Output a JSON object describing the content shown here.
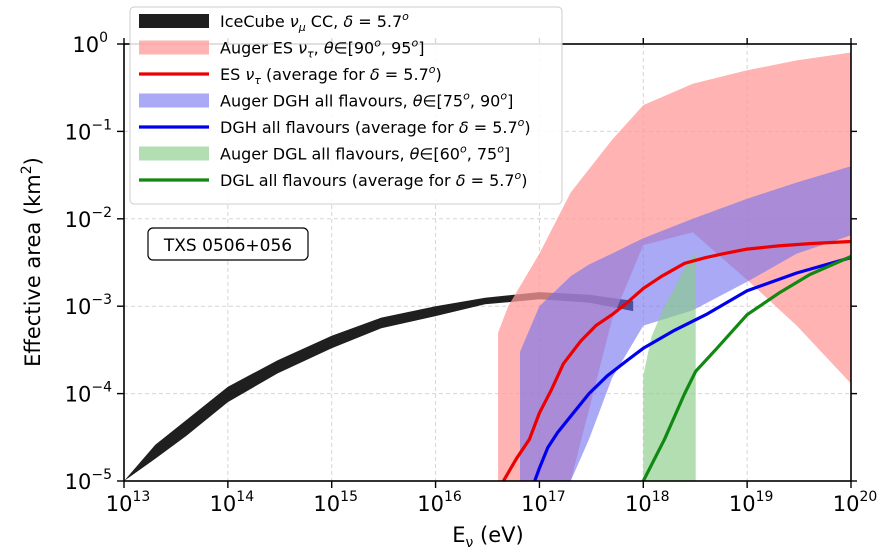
{
  "chart_data": {
    "type": "area",
    "xlabel": "E",
    "xlabel_sub": "ν",
    "xlabel_unit": " (eV)",
    "ylabel": "Effective area (km",
    "ylabel_sup": "2",
    "ylabel_close": ")",
    "x_scale": "log",
    "y_scale": "log",
    "xlim": [
      10000000000000.0,
      1e+20
    ],
    "ylim": [
      1e-05,
      1
    ],
    "grid": true,
    "legend_position": "top-left",
    "x_ticks": [
      {
        "value": 10000000000000.0,
        "base": "10",
        "exp": "13"
      },
      {
        "value": 100000000000000.0,
        "base": "10",
        "exp": "14"
      },
      {
        "value": 1000000000000000.0,
        "base": "10",
        "exp": "15"
      },
      {
        "value": 1e+16,
        "base": "10",
        "exp": "16"
      },
      {
        "value": 1e+17,
        "base": "10",
        "exp": "17"
      },
      {
        "value": 1e+18,
        "base": "10",
        "exp": "18"
      },
      {
        "value": 1e+19,
        "base": "10",
        "exp": "19"
      },
      {
        "value": 1e+20,
        "base": "10",
        "exp": "20"
      }
    ],
    "y_ticks": [
      {
        "value": 1e-05,
        "base": "10",
        "exp": "−5"
      },
      {
        "value": 0.0001,
        "base": "10",
        "exp": "−4"
      },
      {
        "value": 0.001,
        "base": "10",
        "exp": "−3"
      },
      {
        "value": 0.01,
        "base": "10",
        "exp": "−2"
      },
      {
        "value": 0.1,
        "base": "10",
        "exp": "−1"
      },
      {
        "value": 1,
        "base": "10",
        "exp": "0"
      }
    ],
    "annotation": "TXS 0506+056",
    "legend": [
      {
        "kind": "band",
        "color": "#000000",
        "alpha": 0.88,
        "parts": [
          [
            "IceCube ",
            "n"
          ],
          [
            "ν",
            "i"
          ],
          [
            "μ",
            "sub"
          ],
          [
            " CC, ",
            "n"
          ],
          [
            "δ",
            "i"
          ],
          [
            " = 5.7",
            "n"
          ],
          [
            "o",
            "sup"
          ]
        ]
      },
      {
        "kind": "band",
        "color": "#ff9999",
        "alpha": 0.75,
        "parts": [
          [
            "Auger ES ",
            "n"
          ],
          [
            "ν",
            "i"
          ],
          [
            "τ",
            "sub"
          ],
          [
            ", ",
            "n"
          ],
          [
            "θ",
            "i"
          ],
          [
            "∈[90",
            "n"
          ],
          [
            "o",
            "sup"
          ],
          [
            ", 95",
            "n"
          ],
          [
            "o",
            "sup"
          ],
          [
            "]",
            "n"
          ]
        ]
      },
      {
        "kind": "line",
        "color": "#ee0000",
        "parts": [
          [
            "ES ",
            "n"
          ],
          [
            "ν",
            "i"
          ],
          [
            "τ",
            "sub"
          ],
          [
            " (average for ",
            "n"
          ],
          [
            "δ",
            "i"
          ],
          [
            " = 5.7",
            "n"
          ],
          [
            "o",
            "sup"
          ],
          [
            ")",
            "n"
          ]
        ]
      },
      {
        "kind": "band",
        "color": "#7070ee",
        "alpha": 0.6,
        "parts": [
          [
            "Auger DGH all flavours, ",
            "n"
          ],
          [
            "θ",
            "i"
          ],
          [
            "∈[75",
            "n"
          ],
          [
            "o",
            "sup"
          ],
          [
            ", 90",
            "n"
          ],
          [
            "o",
            "sup"
          ],
          [
            "]",
            "n"
          ]
        ]
      },
      {
        "kind": "line",
        "color": "#0000ee",
        "parts": [
          [
            "DGH all flavours (average for ",
            "n"
          ],
          [
            "δ",
            "i"
          ],
          [
            " = 5.7",
            "n"
          ],
          [
            "o",
            "sup"
          ],
          [
            ")",
            "n"
          ]
        ]
      },
      {
        "kind": "band",
        "color": "#88cc88",
        "alpha": 0.65,
        "parts": [
          [
            "Auger DGL all flavours, ",
            "n"
          ],
          [
            "θ",
            "i"
          ],
          [
            "∈[60",
            "n"
          ],
          [
            "o",
            "sup"
          ],
          [
            ", 75",
            "n"
          ],
          [
            "o",
            "sup"
          ],
          [
            "]",
            "n"
          ]
        ]
      },
      {
        "kind": "line",
        "color": "#118811",
        "parts": [
          [
            "DGL all flavours (average for ",
            "n"
          ],
          [
            "δ",
            "i"
          ],
          [
            " = 5.7",
            "n"
          ],
          [
            "o",
            "sup"
          ],
          [
            ")",
            "n"
          ]
        ]
      }
    ],
    "bands": [
      {
        "name": "icecube",
        "color": "#000000",
        "alpha": 0.88,
        "x": [
          10000000000000.0,
          20000000000000.0,
          40000000000000.0,
          100000000000000.0,
          300000000000000.0,
          1000000000000000.0,
          3000000000000000.0,
          1e+16,
          3e+16,
          1e+17,
          3e+17,
          8e+17
        ],
        "lower": [
          7e-06,
          2.5e-05,
          0.0001,
          0.0003,
          0.00011,
          0.00025,
          0.00045,
          0.00065,
          0.0009,
          0.0011,
          0.001,
          0.00085
        ],
        "upper": [
          1.2e-05,
          4e-05,
          0.00015,
          0.0005,
          0.00016,
          0.00036,
          0.00065,
          0.0009,
          0.00125,
          0.00145,
          0.00135,
          0.0011
        ],
        "lower_fix": [
          1e-05,
          1.8e-05,
          3.3e-05,
          8e-05,
          0.00017,
          0.00033,
          0.00056,
          0.00077,
          0.00105,
          0.0012,
          0.0011,
          0.00088
        ],
        "upper_fix": [
          1e-05,
          2.6e-05,
          5e-05,
          0.00012,
          0.00024,
          0.00046,
          0.00074,
          0.001,
          0.00125,
          0.00145,
          0.00135,
          0.00115
        ]
      },
      {
        "name": "auger-es",
        "color": "#ff9999",
        "alpha": 0.75,
        "x": [
          4e+16,
          5e+16,
          1e+17,
          2e+17,
          5e+17,
          1e+18,
          3e+18,
          1e+19,
          3e+19,
          1e+20
        ],
        "lower": [
          1e-05,
          1e-05,
          1e-05,
          1e-05,
          0.0007,
          0.005,
          0.007,
          0.002,
          0.0006,
          0.00013
        ],
        "upper": [
          0.0005,
          0.001,
          0.004,
          0.02,
          0.08,
          0.2,
          0.35,
          0.5,
          0.65,
          0.8
        ]
      },
      {
        "name": "auger-dgh",
        "color": "#7070ee",
        "alpha": 0.6,
        "x": [
          6.5e+16,
          1e+17,
          2e+17,
          3e+17,
          5e+17,
          1e+18,
          3e+18,
          1e+19,
          3e+19,
          1e+20
        ],
        "lower": [
          1e-05,
          1e-05,
          1e-05,
          3e-05,
          0.00015,
          0.0006,
          0.0009,
          0.0019,
          0.004,
          0.0065
        ],
        "upper": [
          0.0003,
          0.001,
          0.0022,
          0.003,
          0.004,
          0.006,
          0.01,
          0.017,
          0.026,
          0.04
        ]
      },
      {
        "name": "auger-dgl",
        "color": "#88cc88",
        "alpha": 0.65,
        "x": [
          1e+18,
          1.2e+18,
          1.6e+18,
          2e+18,
          2.6e+18,
          3.2e+18
        ],
        "lower": [
          1e-05,
          1e-05,
          1e-05,
          1e-05,
          1e-05,
          1e-05
        ],
        "upper": [
          0.00016,
          0.00045,
          0.001,
          0.0016,
          0.003,
          0.0042
        ]
      }
    ],
    "series": [
      {
        "name": "es",
        "color": "#ee0000",
        "x": [
          4.5e+16,
          6e+16,
          8e+16,
          1e+17,
          1.3e+17,
          1.7e+17,
          2.5e+17,
          3.5e+17,
          5e+17,
          7e+17,
          1e+18,
          1.5e+18,
          2.5e+18,
          4e+18,
          6e+18,
          1e+19,
          2e+19,
          4e+19,
          1e+20
        ],
        "y": [
          1e-05,
          1.8e-05,
          3e-05,
          6e-05,
          0.00011,
          0.00022,
          0.0004,
          0.0006,
          0.0008,
          0.0011,
          0.0016,
          0.0022,
          0.0031,
          0.0036,
          0.004,
          0.0045,
          0.0049,
          0.0052,
          0.0055
        ]
      },
      {
        "name": "dgh",
        "color": "#0000ee",
        "x": [
          9e+16,
          1e+17,
          1.2e+17,
          1.5e+17,
          2e+17,
          3e+17,
          4.5e+17,
          7e+17,
          1e+18,
          2e+18,
          4e+18,
          1e+19,
          3e+19,
          1e+20
        ],
        "y": [
          1e-05,
          1.4e-05,
          2.4e-05,
          3.6e-05,
          5.5e-05,
          0.0001,
          0.00016,
          0.00024,
          0.00033,
          0.00053,
          0.0008,
          0.0015,
          0.0024,
          0.0036
        ]
      },
      {
        "name": "dgl",
        "color": "#118811",
        "x": [
          1e+18,
          1.6e+18,
          2.5e+18,
          3.2e+18,
          5e+18,
          1e+19,
          2e+19,
          4e+19,
          1e+20
        ],
        "y": [
          1e-05,
          3e-05,
          0.0001,
          0.00018,
          0.00032,
          0.0008,
          0.0014,
          0.0023,
          0.0037
        ]
      }
    ]
  }
}
